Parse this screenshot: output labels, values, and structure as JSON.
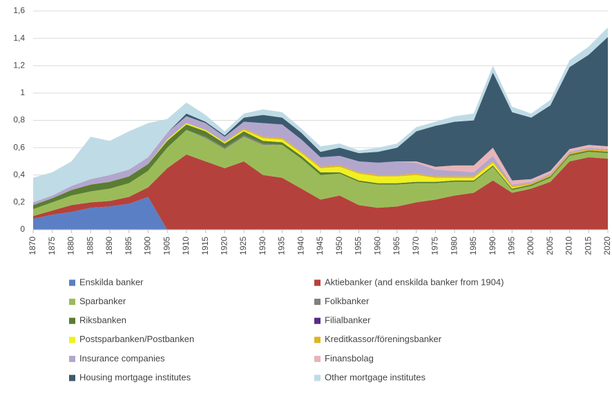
{
  "chart_data": {
    "type": "stacked_area",
    "x": [
      1870,
      1875,
      1880,
      1885,
      1890,
      1895,
      1900,
      1905,
      1910,
      1915,
      1920,
      1925,
      1930,
      1935,
      1940,
      1945,
      1950,
      1955,
      1960,
      1965,
      1970,
      1975,
      1980,
      1985,
      1990,
      1995,
      2000,
      2005,
      2010,
      2015,
      2020
    ],
    "xlim": [
      1870,
      2020
    ],
    "xticks": [
      1870,
      1875,
      1880,
      1885,
      1890,
      1895,
      1900,
      1905,
      1910,
      1915,
      1920,
      1925,
      1930,
      1935,
      1940,
      1945,
      1950,
      1955,
      1960,
      1965,
      1970,
      1975,
      1980,
      1985,
      1990,
      1995,
      2000,
      2005,
      2010,
      2015,
      2020
    ],
    "ylim": [
      0,
      1.6
    ],
    "yticks": [
      0,
      {
        "value": 0.2,
        "label": "0,2"
      },
      {
        "value": 0.4,
        "label": "0,4"
      },
      {
        "value": 0.6,
        "label": "0,6"
      },
      {
        "value": 0.8,
        "label": "0,8"
      },
      1,
      {
        "value": 1.2,
        "label": "1,2"
      },
      {
        "value": 1.4,
        "label": "1,4"
      },
      {
        "value": 1.6,
        "label": "1,6"
      }
    ],
    "series": [
      {
        "name": "Enskilda banker",
        "color": "#5b7fc4",
        "values": [
          0.08,
          0.11,
          0.13,
          0.16,
          0.17,
          0.19,
          0.24,
          0,
          0,
          0,
          0,
          0,
          0,
          0,
          0,
          0,
          0,
          0,
          0,
          0,
          0,
          0,
          0,
          0,
          0,
          0,
          0,
          0,
          0,
          0,
          0
        ]
      },
      {
        "name": "Aktiebanker (and enskilda banker from 1904)",
        "color": "#b5413c",
        "values": [
          0.02,
          0.03,
          0.05,
          0.04,
          0.04,
          0.05,
          0.07,
          0.45,
          0.55,
          0.5,
          0.45,
          0.5,
          0.4,
          0.38,
          0.3,
          0.22,
          0.25,
          0.18,
          0.16,
          0.17,
          0.2,
          0.22,
          0.25,
          0.27,
          0.36,
          0.27,
          0.3,
          0.35,
          0.5,
          0.53,
          0.52
        ]
      },
      {
        "name": "Sparbanker",
        "color": "#9bbb59",
        "values": [
          0.05,
          0.06,
          0.07,
          0.08,
          0.09,
          0.1,
          0.12,
          0.15,
          0.18,
          0.17,
          0.14,
          0.18,
          0.22,
          0.24,
          0.22,
          0.18,
          0.16,
          0.17,
          0.17,
          0.16,
          0.14,
          0.12,
          0.1,
          0.08,
          0.1,
          0.02,
          0.02,
          0.03,
          0.04,
          0.04,
          0.04
        ]
      },
      {
        "name": "Folkbanker",
        "color": "#7f7f7f",
        "values": [
          0,
          0,
          0,
          0,
          0,
          0,
          0,
          0,
          0,
          0.01,
          0.01,
          0.01,
          0.01,
          0,
          0,
          0,
          0,
          0,
          0,
          0,
          0,
          0,
          0,
          0,
          0,
          0,
          0,
          0,
          0,
          0,
          0
        ]
      },
      {
        "name": "Riksbanken",
        "color": "#5a7d32",
        "values": [
          0.03,
          0.03,
          0.04,
          0.05,
          0.05,
          0.05,
          0.05,
          0.05,
          0.04,
          0.04,
          0.03,
          0.03,
          0.02,
          0.02,
          0.02,
          0.02,
          0.01,
          0.01,
          0.01,
          0.01,
          0.01,
          0.01,
          0.01,
          0.01,
          0.01,
          0.01,
          0.01,
          0.01,
          0.01,
          0.01,
          0.01
        ]
      },
      {
        "name": "Filialbanker",
        "color": "#5b2a86",
        "values": [
          0,
          0,
          0,
          0,
          0,
          0,
          0,
          0,
          0,
          0,
          0,
          0,
          0,
          0,
          0,
          0,
          0,
          0,
          0,
          0,
          0,
          0,
          0,
          0,
          0,
          0,
          0,
          0,
          0,
          0,
          0
        ]
      },
      {
        "name": "Postsparbanken/Postbanken",
        "color": "#f0f020",
        "values": [
          0,
          0,
          0,
          0,
          0,
          0,
          0,
          0.01,
          0.01,
          0.01,
          0.01,
          0.01,
          0.02,
          0.02,
          0.02,
          0.03,
          0.04,
          0.05,
          0.05,
          0.05,
          0.05,
          0.03,
          0.02,
          0.02,
          0.02,
          0.01,
          0,
          0,
          0,
          0,
          0
        ]
      },
      {
        "name": "Kreditkassor/föreningsbanker",
        "color": "#e0b420",
        "values": [
          0,
          0,
          0,
          0,
          0,
          0,
          0,
          0,
          0,
          0,
          0,
          0.01,
          0.01,
          0.01,
          0.01,
          0.01,
          0.01,
          0.01,
          0.01,
          0.01,
          0.01,
          0.01,
          0.01,
          0.01,
          0.01,
          0.01,
          0.01,
          0.01,
          0.01,
          0.01,
          0.01
        ]
      },
      {
        "name": "Insurance companies",
        "color": "#b3a6cc",
        "values": [
          0.02,
          0.02,
          0.03,
          0.04,
          0.05,
          0.05,
          0.05,
          0.05,
          0.05,
          0.05,
          0.04,
          0.05,
          0.1,
          0.1,
          0.09,
          0.07,
          0.07,
          0.08,
          0.09,
          0.1,
          0.08,
          0.05,
          0.04,
          0.03,
          0.04,
          0.01,
          0.01,
          0.01,
          0.01,
          0.01,
          0.01
        ]
      },
      {
        "name": "Finansbolag",
        "color": "#e8b4b8",
        "values": [
          0,
          0,
          0,
          0,
          0,
          0,
          0,
          0,
          0,
          0,
          0,
          0,
          0,
          0,
          0,
          0,
          0,
          0,
          0,
          0,
          0.01,
          0.02,
          0.04,
          0.05,
          0.06,
          0.03,
          0.02,
          0.02,
          0.02,
          0.02,
          0.02
        ]
      },
      {
        "name": "Housing mortgage institutes",
        "color": "#3b5a6e",
        "values": [
          0,
          0,
          0,
          0,
          0,
          0,
          0,
          0,
          0.02,
          0.01,
          0.01,
          0.03,
          0.06,
          0.05,
          0.05,
          0.04,
          0.06,
          0.06,
          0.08,
          0.1,
          0.22,
          0.3,
          0.32,
          0.33,
          0.55,
          0.5,
          0.45,
          0.48,
          0.6,
          0.66,
          0.8
        ]
      },
      {
        "name": "Other mortgage institutes",
        "color": "#bfdbe6",
        "values": [
          0.18,
          0.17,
          0.18,
          0.31,
          0.25,
          0.28,
          0.25,
          0.1,
          0.08,
          0.05,
          0.03,
          0.03,
          0.04,
          0.04,
          0.03,
          0.04,
          0.03,
          0.02,
          0.03,
          0.03,
          0.03,
          0.03,
          0.04,
          0.05,
          0.05,
          0.04,
          0.03,
          0.04,
          0.05,
          0.06,
          0.07
        ]
      }
    ]
  }
}
